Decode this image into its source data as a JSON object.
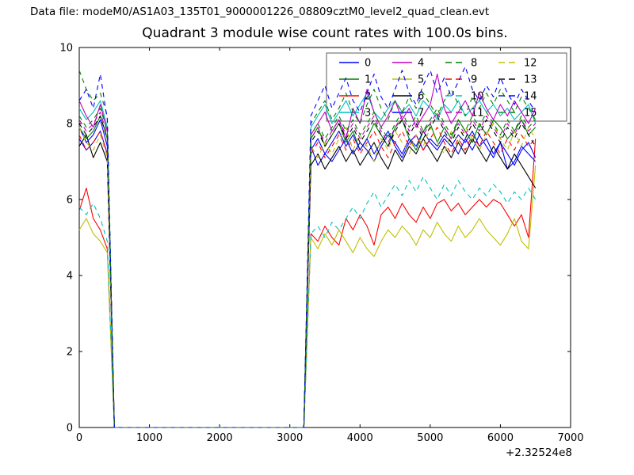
{
  "header": {
    "data_file_label": "Data file: modeM0/AS1A03_135T01_9000001226_08809cztM0_level2_quad_clean.evt",
    "title": "Quadrant 3 module wise count rates with 100.0s bins."
  },
  "colors": {
    "background": "#ffffff",
    "axis": "#000000",
    "legend_border": "#777777",
    "legend_background": "#ffffff"
  },
  "chart_data": {
    "type": "line",
    "title": "Quadrant 3 module wise count rates with 100.0s bins.",
    "xlabel": "",
    "ylabel": "",
    "xlim": [
      0,
      7000
    ],
    "ylim": [
      0,
      10
    ],
    "xticks": [
      0,
      1000,
      2000,
      3000,
      4000,
      5000,
      6000,
      7000
    ],
    "yticks": [
      0,
      2,
      4,
      6,
      8,
      10
    ],
    "x_offset_label": "+2.32524e8",
    "grid": false,
    "legend_position": "upper right",
    "x_start": 0,
    "x_step": 100,
    "series": [
      {
        "name": "0",
        "color": "#0000ff",
        "style": "solid",
        "values": [
          7.6,
          7.3,
          7.5,
          7.8,
          7.2,
          0,
          0,
          0,
          0,
          0,
          0,
          0,
          0,
          0,
          0,
          0,
          0,
          0,
          0,
          0,
          0,
          0,
          0,
          0,
          0,
          0,
          0,
          0,
          0,
          0,
          0,
          0,
          0,
          7.4,
          6.9,
          7.2,
          7.0,
          7.3,
          7.6,
          7.2,
          7.5,
          7.3,
          7.0,
          7.4,
          7.7,
          7.5,
          7.2,
          7.6,
          7.4,
          7.8,
          7.5,
          7.3,
          7.6,
          7.4,
          7.7,
          7.5,
          7.8,
          7.4,
          7.6,
          7.2,
          7.5,
          6.8,
          7.0,
          7.4,
          7.2,
          7.0
        ]
      },
      {
        "name": "1",
        "color": "#007f00",
        "style": "solid",
        "values": [
          7.9,
          7.6,
          7.8,
          8.2,
          7.6,
          0,
          0,
          0,
          0,
          0,
          0,
          0,
          0,
          0,
          0,
          0,
          0,
          0,
          0,
          0,
          0,
          0,
          0,
          0,
          0,
          0,
          0,
          0,
          0,
          0,
          0,
          0,
          0,
          7.6,
          7.9,
          7.4,
          7.7,
          8.0,
          7.5,
          7.8,
          7.3,
          7.6,
          8.0,
          7.7,
          7.4,
          7.9,
          8.1,
          7.6,
          7.3,
          7.8,
          8.0,
          7.5,
          7.9,
          7.6,
          8.1,
          7.8,
          7.5,
          8.0,
          7.7,
          8.1,
          7.9,
          7.6,
          7.8,
          8.1,
          7.7,
          7.9
        ]
      },
      {
        "name": "2",
        "color": "#ff0000",
        "style": "solid",
        "values": [
          5.7,
          6.3,
          5.5,
          5.2,
          4.7,
          0,
          0,
          0,
          0,
          0,
          0,
          0,
          0,
          0,
          0,
          0,
          0,
          0,
          0,
          0,
          0,
          0,
          0,
          0,
          0,
          0,
          0,
          0,
          0,
          0,
          0,
          0,
          0,
          5.1,
          4.9,
          5.3,
          5.0,
          4.8,
          5.5,
          5.2,
          5.6,
          5.3,
          4.8,
          5.6,
          5.8,
          5.5,
          5.9,
          5.6,
          5.4,
          5.8,
          5.5,
          5.9,
          6.0,
          5.7,
          5.9,
          5.6,
          5.8,
          6.0,
          5.8,
          6.0,
          5.9,
          5.6,
          5.3,
          5.6,
          5.0,
          7.6
        ]
      },
      {
        "name": "3",
        "color": "#00bfbf",
        "style": "solid",
        "values": [
          8.4,
          8.1,
          8.3,
          8.6,
          7.9,
          0,
          0,
          0,
          0,
          0,
          0,
          0,
          0,
          0,
          0,
          0,
          0,
          0,
          0,
          0,
          0,
          0,
          0,
          0,
          0,
          0,
          0,
          0,
          0,
          0,
          0,
          0,
          0,
          7.9,
          8.2,
          8.5,
          8.0,
          8.3,
          8.6,
          8.2,
          8.5,
          8.8,
          8.3,
          8.1,
          8.4,
          8.6,
          8.3,
          8.5,
          8.2,
          8.6,
          8.4,
          8.1,
          8.5,
          8.3,
          8.6,
          8.2,
          8.4,
          8.6,
          8.3,
          8.5,
          8.2,
          8.4,
          8.1,
          8.3,
          8.5,
          8.0
        ]
      },
      {
        "name": "4",
        "color": "#bf00bf",
        "style": "solid",
        "values": [
          8.6,
          8.2,
          7.9,
          8.5,
          7.8,
          0,
          0,
          0,
          0,
          0,
          0,
          0,
          0,
          0,
          0,
          0,
          0,
          0,
          0,
          0,
          0,
          0,
          0,
          0,
          0,
          0,
          0,
          0,
          0,
          0,
          0,
          0,
          0,
          7.7,
          8.0,
          8.3,
          7.8,
          8.1,
          7.6,
          8.4,
          8.0,
          8.9,
          8.3,
          7.9,
          8.2,
          8.6,
          8.1,
          8.4,
          7.9,
          8.2,
          8.5,
          9.3,
          8.4,
          8.0,
          8.3,
          8.6,
          8.2,
          8.8,
          8.4,
          8.1,
          8.5,
          8.2,
          8.6,
          8.3,
          8.0,
          8.4
        ]
      },
      {
        "name": "5",
        "color": "#bfbf00",
        "style": "solid",
        "values": [
          5.2,
          5.5,
          5.1,
          4.9,
          4.6,
          0,
          0,
          0,
          0,
          0,
          0,
          0,
          0,
          0,
          0,
          0,
          0,
          0,
          0,
          0,
          0,
          0,
          0,
          0,
          0,
          0,
          0,
          0,
          0,
          0,
          0,
          0,
          0,
          5.0,
          4.7,
          5.1,
          4.8,
          5.2,
          4.9,
          4.6,
          5.0,
          4.7,
          4.5,
          4.9,
          5.2,
          5.0,
          5.3,
          5.1,
          4.8,
          5.2,
          5.0,
          5.4,
          5.1,
          4.9,
          5.3,
          5.0,
          5.2,
          5.5,
          5.2,
          5.0,
          4.8,
          5.1,
          5.5,
          4.9,
          4.7,
          6.9
        ]
      },
      {
        "name": "6",
        "color": "#000000",
        "style": "solid",
        "values": [
          7.4,
          7.7,
          7.1,
          7.5,
          7.0,
          0,
          0,
          0,
          0,
          0,
          0,
          0,
          0,
          0,
          0,
          0,
          0,
          0,
          0,
          0,
          0,
          0,
          0,
          0,
          0,
          0,
          0,
          0,
          0,
          0,
          0,
          0,
          0,
          6.9,
          7.2,
          6.8,
          7.1,
          7.4,
          7.0,
          7.3,
          6.9,
          7.2,
          7.5,
          7.1,
          6.8,
          7.3,
          7.0,
          7.4,
          7.2,
          7.6,
          7.3,
          7.0,
          7.4,
          7.1,
          7.5,
          7.2,
          7.6,
          7.3,
          7.0,
          7.4,
          7.1,
          6.8,
          7.2,
          6.9,
          6.6,
          6.3
        ]
      },
      {
        "name": "7",
        "color": "#0000ff",
        "style": "solid",
        "values": [
          7.9,
          7.5,
          7.7,
          8.1,
          7.4,
          0,
          0,
          0,
          0,
          0,
          0,
          0,
          0,
          0,
          0,
          0,
          0,
          0,
          0,
          0,
          0,
          0,
          0,
          0,
          0,
          0,
          0,
          0,
          0,
          0,
          0,
          0,
          0,
          7.3,
          7.6,
          7.2,
          7.5,
          7.8,
          7.4,
          7.7,
          7.3,
          7.6,
          7.2,
          7.5,
          7.8,
          7.4,
          7.1,
          7.5,
          7.7,
          7.3,
          7.6,
          7.4,
          7.7,
          7.5,
          7.2,
          7.6,
          7.3,
          7.7,
          7.4,
          7.1,
          7.5,
          7.2,
          6.9,
          7.3,
          7.5,
          7.1
        ]
      },
      {
        "name": "8",
        "color": "#007f00",
        "style": "dashed",
        "values": [
          9.4,
          8.9,
          8.6,
          8.8,
          8.2,
          0,
          0,
          0,
          0,
          0,
          0,
          0,
          0,
          0,
          0,
          0,
          0,
          0,
          0,
          0,
          0,
          0,
          0,
          0,
          0,
          0,
          0,
          0,
          0,
          0,
          0,
          0,
          0,
          8.0,
          8.3,
          8.6,
          8.1,
          8.4,
          8.8,
          8.3,
          8.0,
          8.5,
          8.9,
          8.4,
          8.1,
          8.6,
          8.3,
          8.7,
          8.4,
          8.8,
          8.5,
          8.2,
          8.6,
          8.9,
          8.5,
          8.2,
          8.7,
          8.4,
          8.8,
          8.5,
          8.9,
          8.6,
          8.3,
          8.7,
          8.4,
          8.1
        ]
      },
      {
        "name": "9",
        "color": "#ff0000",
        "style": "dashed",
        "values": [
          7.7,
          7.3,
          7.5,
          7.8,
          7.2,
          0,
          0,
          0,
          0,
          0,
          0,
          0,
          0,
          0,
          0,
          0,
          0,
          0,
          0,
          0,
          0,
          0,
          0,
          0,
          0,
          0,
          0,
          0,
          0,
          0,
          0,
          0,
          0,
          7.2,
          7.5,
          7.1,
          7.4,
          7.7,
          7.3,
          7.6,
          7.2,
          7.5,
          7.8,
          7.4,
          7.1,
          7.5,
          7.8,
          7.4,
          7.7,
          7.3,
          7.6,
          7.9,
          7.5,
          7.2,
          7.6,
          7.3,
          7.7,
          7.4,
          7.8,
          7.5,
          7.2,
          7.6,
          7.3,
          7.7,
          7.4,
          7.6
        ]
      },
      {
        "name": "10",
        "color": "#00bfbf",
        "style": "dashed",
        "values": [
          5.8,
          5.6,
          5.9,
          5.5,
          4.9,
          0,
          0,
          0,
          0,
          0,
          0,
          0,
          0,
          0,
          0,
          0,
          0,
          0,
          0,
          0,
          0,
          0,
          0,
          0,
          0,
          0,
          0,
          0,
          0,
          0,
          0,
          0,
          0,
          5.1,
          5.3,
          5.0,
          5.4,
          5.2,
          5.5,
          5.8,
          5.5,
          5.9,
          6.2,
          5.8,
          6.1,
          6.4,
          6.1,
          6.5,
          6.2,
          6.6,
          6.3,
          6.0,
          6.4,
          6.1,
          6.5,
          6.2,
          6.0,
          6.3,
          6.1,
          6.4,
          6.2,
          5.9,
          6.2,
          6.0,
          6.3,
          6.0
        ]
      },
      {
        "name": "11",
        "color": "#bf00bf",
        "style": "dashed",
        "values": [
          8.1,
          7.8,
          8.0,
          8.3,
          7.7,
          0,
          0,
          0,
          0,
          0,
          0,
          0,
          0,
          0,
          0,
          0,
          0,
          0,
          0,
          0,
          0,
          0,
          0,
          0,
          0,
          0,
          0,
          0,
          0,
          0,
          0,
          0,
          0,
          7.6,
          7.9,
          7.5,
          7.8,
          8.1,
          7.7,
          8.0,
          7.6,
          7.9,
          8.2,
          7.8,
          7.5,
          7.9,
          8.2,
          7.8,
          8.1,
          7.7,
          8.0,
          8.3,
          7.9,
          7.6,
          8.0,
          7.7,
          8.1,
          7.8,
          8.2,
          7.9,
          7.6,
          8.0,
          7.7,
          8.1,
          7.8,
          8.0
        ]
      },
      {
        "name": "12",
        "color": "#bfbf00",
        "style": "dashed",
        "values": [
          7.9,
          7.5,
          7.3,
          7.7,
          7.1,
          0,
          0,
          0,
          0,
          0,
          0,
          0,
          0,
          0,
          0,
          0,
          0,
          0,
          0,
          0,
          0,
          0,
          0,
          0,
          0,
          0,
          0,
          0,
          0,
          0,
          0,
          0,
          0,
          7.4,
          7.1,
          7.5,
          7.2,
          7.6,
          7.9,
          7.3,
          7.7,
          7.4,
          7.0,
          7.6,
          7.3,
          7.8,
          7.5,
          7.2,
          7.7,
          7.4,
          7.9,
          7.5,
          7.2,
          7.8,
          7.5,
          7.9,
          7.6,
          7.3,
          7.7,
          8.0,
          7.6,
          7.3,
          7.8,
          7.4,
          7.9,
          7.6
        ]
      },
      {
        "name": "13",
        "color": "#000000",
        "style": "dashed",
        "values": [
          8.0,
          7.7,
          7.9,
          8.2,
          7.6,
          0,
          0,
          0,
          0,
          0,
          0,
          0,
          0,
          0,
          0,
          0,
          0,
          0,
          0,
          0,
          0,
          0,
          0,
          0,
          0,
          0,
          0,
          0,
          0,
          0,
          0,
          0,
          0,
          7.5,
          7.8,
          7.4,
          7.7,
          8.0,
          7.6,
          7.9,
          7.5,
          7.8,
          8.1,
          7.7,
          7.4,
          7.8,
          8.1,
          7.7,
          8.0,
          7.6,
          7.9,
          8.2,
          7.8,
          7.5,
          7.9,
          7.6,
          8.0,
          7.7,
          8.1,
          7.8,
          7.5,
          7.9,
          7.6,
          8.0,
          7.7,
          7.4
        ]
      },
      {
        "name": "14",
        "color": "#0000ff",
        "style": "dashed",
        "values": [
          8.6,
          8.9,
          8.4,
          9.3,
          8.1,
          0,
          0,
          0,
          0,
          0,
          0,
          0,
          0,
          0,
          0,
          0,
          0,
          0,
          0,
          0,
          0,
          0,
          0,
          0,
          0,
          0,
          0,
          0,
          0,
          0,
          0,
          0,
          0,
          8.2,
          8.6,
          9.0,
          8.4,
          8.8,
          9.2,
          8.6,
          8.3,
          8.8,
          9.3,
          8.7,
          8.4,
          8.9,
          9.4,
          8.8,
          8.5,
          9.0,
          9.4,
          8.8,
          9.2,
          8.7,
          9.1,
          9.5,
          8.9,
          8.6,
          9.0,
          8.7,
          9.2,
          8.8,
          8.5,
          8.9,
          8.6,
          8.3
        ]
      },
      {
        "name": "15",
        "color": "#007f00",
        "style": "dashed",
        "values": [
          8.2,
          7.9,
          8.1,
          8.4,
          7.8,
          0,
          0,
          0,
          0,
          0,
          0,
          0,
          0,
          0,
          0,
          0,
          0,
          0,
          0,
          0,
          0,
          0,
          0,
          0,
          0,
          0,
          0,
          0,
          0,
          0,
          0,
          0,
          0,
          7.7,
          8.0,
          7.6,
          7.9,
          8.2,
          7.8,
          8.1,
          7.7,
          8.0,
          8.3,
          7.9,
          7.6,
          8.0,
          8.3,
          7.9,
          8.2,
          7.8,
          8.1,
          8.4,
          8.0,
          7.7,
          8.1,
          7.8,
          8.2,
          7.9,
          8.3,
          8.0,
          7.7,
          8.1,
          7.8,
          8.2,
          7.9,
          8.1
        ]
      }
    ]
  }
}
